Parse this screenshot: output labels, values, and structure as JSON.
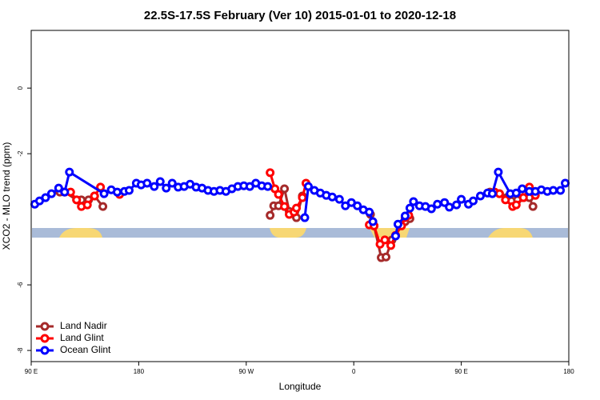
{
  "chart_data": {
    "type": "line",
    "title": "22.5S-17.5S February (Ver 10)   2015-01-01 to 2020-12-18",
    "x_label": "Longitude",
    "y_label": "XCO2 - MLO trend (ppm)",
    "xlim": [
      90,
      540
    ],
    "ylim": [
      -8.34,
      1.76
    ],
    "xticks": [
      {
        "value": 90,
        "label": "90 E"
      },
      180,
      {
        "value": 270,
        "label": "90 W"
      },
      {
        "value": 360,
        "label": "0"
      },
      {
        "value": 450,
        "label": "90 E"
      },
      {
        "value": 540,
        "label": "180"
      }
    ],
    "yticks": [
      0,
      -2,
      -6,
      -8
    ],
    "legend": "bottom-left",
    "series": [
      {
        "name": "Land Nadir",
        "color": "#a52a2a",
        "x": [
          114,
          118,
          128,
          132,
          138,
          143,
          150,
          null,
          290,
          293,
          297,
          302,
          306,
          312,
          317,
          null,
          374,
          377,
          383,
          387,
          392,
          null,
          403,
          407,
          null,
          474,
          482,
          488,
          492,
          497,
          502,
          507,
          510
        ],
        "values": [
          -3.17,
          -3.17,
          -3.41,
          -3.41,
          -3.41,
          -3.29,
          -3.61,
          null,
          -3.88,
          -3.59,
          -3.59,
          -3.07,
          -3.76,
          -3.95,
          -3.29,
          null,
          -3.85,
          -4.2,
          -5.17,
          -5.15,
          -4.63,
          null,
          -4.07,
          -3.98,
          null,
          -3.17,
          -3.22,
          -3.34,
          -3.44,
          -3.41,
          -3.34,
          -3.34,
          -3.61
        ]
      },
      {
        "name": "Land Glint",
        "color": "#ff0000",
        "x": [
          118,
          123,
          128,
          132,
          137,
          143,
          148,
          null,
          164,
          null,
          290,
          294,
          297,
          302,
          306,
          310,
          312,
          317,
          320,
          null,
          373,
          377,
          382,
          386,
          391,
          395,
          400,
          403,
          406,
          null,
          478,
          482,
          487,
          493,
          496,
          502,
          507,
          512
        ],
        "values": [
          -3.17,
          -3.17,
          -3.41,
          -3.61,
          -3.56,
          -3.29,
          -3.02,
          null,
          -3.24,
          null,
          -2.58,
          -3.07,
          -3.24,
          -3.61,
          -3.85,
          -3.78,
          -3.66,
          -3.34,
          -2.9,
          null,
          -4.17,
          -4.2,
          -4.76,
          -4.63,
          -4.8,
          -4.49,
          -4.2,
          -3.95,
          -3.88,
          null,
          -3.17,
          -3.22,
          -3.41,
          -3.61,
          -3.56,
          -3.34,
          -3.02,
          -3.27
        ]
      },
      {
        "name": "Ocean Glint",
        "color": "#0000ff",
        "x": [
          93,
          97,
          102,
          107,
          113,
          118,
          122,
          151,
          157,
          162,
          168,
          172,
          178,
          182,
          187,
          193,
          198,
          203,
          208,
          213,
          218,
          223,
          228,
          233,
          238,
          243,
          248,
          253,
          258,
          263,
          268,
          273,
          278,
          283,
          288,
          null,
          319,
          322,
          327,
          332,
          337,
          342,
          348,
          353,
          358,
          363,
          368,
          373,
          376,
          null,
          395,
          397,
          403,
          407,
          410,
          415,
          420,
          425,
          430,
          436,
          440,
          446,
          450,
          456,
          460,
          466,
          472,
          476,
          481,
          491,
          496,
          501,
          507,
          512,
          517,
          522,
          527,
          533,
          537
        ],
        "values": [
          -3.54,
          -3.44,
          -3.34,
          -3.22,
          -3.05,
          -3.17,
          -2.56,
          -3.22,
          -3.1,
          -3.17,
          -3.15,
          -3.12,
          -2.9,
          -2.95,
          -2.9,
          -3.0,
          -2.85,
          -3.05,
          -2.9,
          -3.02,
          -3.0,
          -2.93,
          -3.02,
          -3.05,
          -3.12,
          -3.15,
          -3.12,
          -3.15,
          -3.07,
          -3.0,
          -2.98,
          -3.0,
          -2.9,
          -2.98,
          -3.0,
          null,
          -3.95,
          -3.0,
          -3.12,
          -3.2,
          -3.27,
          -3.32,
          -3.39,
          -3.59,
          -3.49,
          -3.59,
          -3.71,
          -3.78,
          -4.07,
          null,
          -4.51,
          -4.15,
          -3.9,
          -3.66,
          -3.46,
          -3.59,
          -3.61,
          -3.68,
          -3.54,
          -3.49,
          -3.63,
          -3.56,
          -3.39,
          -3.54,
          -3.44,
          -3.29,
          -3.2,
          -3.22,
          -2.56,
          -3.22,
          -3.2,
          -3.07,
          -3.15,
          -3.15,
          -3.1,
          -3.15,
          -3.12,
          -3.12,
          -2.9
        ]
      }
    ]
  }
}
